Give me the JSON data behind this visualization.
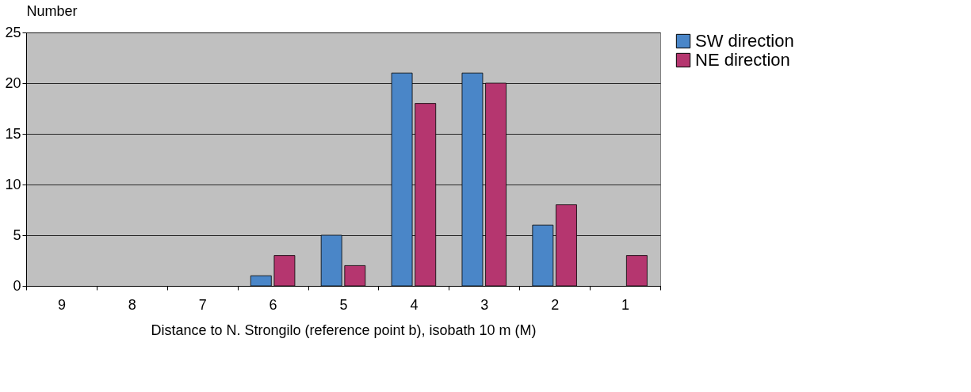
{
  "chart_data": {
    "type": "bar",
    "xlabel": "Distance to N. Strongilo (reference point b), isobath 10 m  (M)",
    "ylabel": "Number",
    "categories": [
      "9",
      "8",
      "7",
      "6",
      "5",
      "4",
      "3",
      "2",
      "1"
    ],
    "series": [
      {
        "name": "SW direction",
        "color": "#4a86c8",
        "values": [
          null,
          null,
          null,
          1,
          5,
          21,
          21,
          6,
          null
        ]
      },
      {
        "name": "NE direction",
        "color": "#b5366f",
        "values": [
          null,
          null,
          null,
          3,
          2,
          18,
          20,
          8,
          3
        ]
      }
    ],
    "ylim": [
      0,
      25
    ],
    "yticks": [
      0,
      5,
      10,
      15,
      20,
      25
    ],
    "grid": "y",
    "legend": "right"
  }
}
